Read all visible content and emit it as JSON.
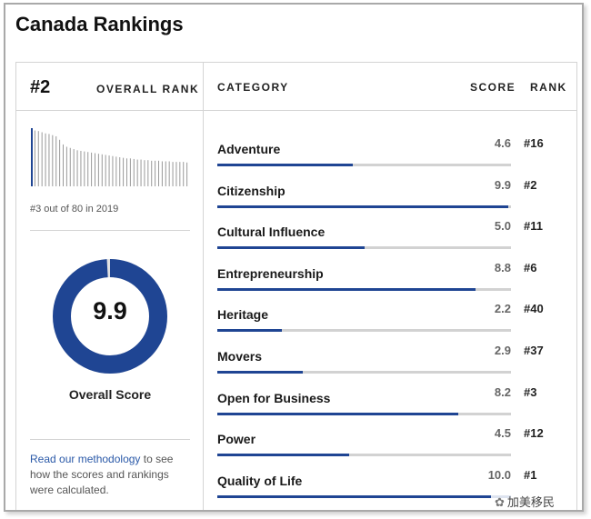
{
  "page": {
    "title": "Canada Rankings"
  },
  "overall": {
    "rank": "#2",
    "rank_label": "OVERALL RANK",
    "history_caption": "#3 out of 80 in 2019",
    "history_values": [
      1.0,
      0.96,
      0.95,
      0.93,
      0.91,
      0.9,
      0.88,
      0.86,
      0.8,
      0.72,
      0.68,
      0.66,
      0.64,
      0.62,
      0.61,
      0.6,
      0.59,
      0.58,
      0.57,
      0.56,
      0.55,
      0.54,
      0.53,
      0.52,
      0.51,
      0.5,
      0.49,
      0.48,
      0.48,
      0.47,
      0.46,
      0.46,
      0.45,
      0.45,
      0.44,
      0.44,
      0.44,
      0.43,
      0.43,
      0.43,
      0.42,
      0.42,
      0.42,
      0.42,
      0.41
    ],
    "score": "9.9",
    "score_fraction": 0.99,
    "score_label": "Overall Score",
    "accent_color": "#1f4593"
  },
  "methodology": {
    "link_text": "Read our methodology",
    "rest_text": " to see how the scores and rankings were calculated."
  },
  "table": {
    "headers": {
      "category": "CATEGORY",
      "score": "SCORE",
      "rank": "RANK"
    },
    "rows": [
      {
        "name": "Adventure",
        "score": "4.6",
        "value": 4.6,
        "rank": "#16"
      },
      {
        "name": "Citizenship",
        "score": "9.9",
        "value": 9.9,
        "rank": "#2"
      },
      {
        "name": "Cultural Influence",
        "score": "5.0",
        "value": 5.0,
        "rank": "#11"
      },
      {
        "name": "Entrepreneurship",
        "score": "8.8",
        "value": 8.8,
        "rank": "#6"
      },
      {
        "name": "Heritage",
        "score": "2.2",
        "value": 2.2,
        "rank": "#40"
      },
      {
        "name": "Movers",
        "score": "2.9",
        "value": 2.9,
        "rank": "#37"
      },
      {
        "name": "Open for Business",
        "score": "8.2",
        "value": 8.2,
        "rank": "#3"
      },
      {
        "name": "Power",
        "score": "4.5",
        "value": 4.5,
        "rank": "#12"
      },
      {
        "name": "Quality of Life",
        "score": "10.0",
        "value": 10.0,
        "rank": "#1"
      }
    ]
  },
  "watermark": {
    "text": "加美移民"
  }
}
